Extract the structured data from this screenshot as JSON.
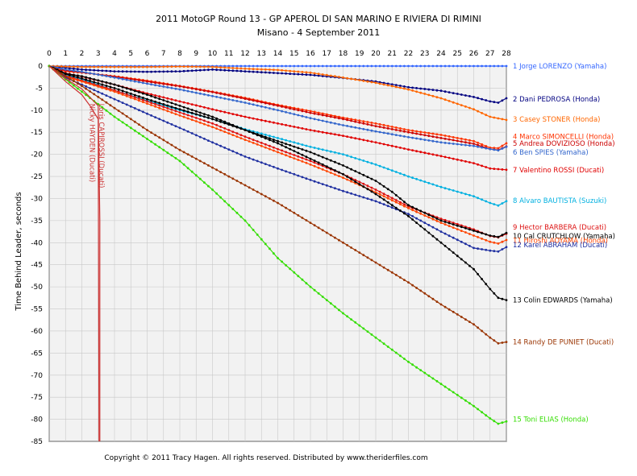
{
  "header": {
    "title": "2011 MotoGP Round 13 - GP APEROL DI SAN MARINO E RIVIERA DI RIMINI",
    "subtitle": "Misano - 4 September 2011"
  },
  "footer": {
    "copyright": "Copyright © 2011 Tracy Hagen.  All rights reserved.  Distributed by www.theriderfiles.com"
  },
  "chart_data": {
    "type": "line",
    "title": "2011 MotoGP Round 13 - GP APEROL DI SAN MARINO E RIVIERA DI RIMINI",
    "subtitle": "Misano - 4 September 2011",
    "xlabel": "",
    "ylabel": "Time Behind Leader, seconds",
    "xlim": [
      0,
      28
    ],
    "ylim": [
      -85,
      0
    ],
    "x_ticks": [
      0,
      1,
      2,
      3,
      4,
      5,
      6,
      7,
      8,
      9,
      10,
      11,
      12,
      13,
      14,
      15,
      16,
      17,
      18,
      19,
      20,
      21,
      22,
      23,
      24,
      25,
      26,
      27,
      28
    ],
    "y_ticks": [
      0,
      -5,
      -10,
      -15,
      -20,
      -25,
      -30,
      -35,
      -40,
      -45,
      -50,
      -55,
      -60,
      -65,
      -70,
      -75,
      -80,
      -85
    ],
    "grid": true,
    "legend": "right-end labels",
    "series": [
      {
        "name": "1 Jorge LORENZO (Yamaha)",
        "color": "#3366ff",
        "label_y": 0,
        "points": [
          [
            0,
            0
          ],
          [
            28,
            0
          ]
        ]
      },
      {
        "name": "2 Dani PEDROSA (Honda)",
        "color": "#000080",
        "label_y": -7.5,
        "points": [
          [
            0,
            0
          ],
          [
            2,
            -0.8
          ],
          [
            4,
            -1.2
          ],
          [
            6,
            -1.3
          ],
          [
            8,
            -1.2
          ],
          [
            10,
            -0.8
          ],
          [
            12,
            -1.2
          ],
          [
            14,
            -1.6
          ],
          [
            16,
            -2
          ],
          [
            18,
            -2.7
          ],
          [
            20,
            -3.5
          ],
          [
            22,
            -4.8
          ],
          [
            24,
            -5.6
          ],
          [
            26,
            -7
          ],
          [
            27,
            -8
          ],
          [
            27.5,
            -8.3
          ],
          [
            28,
            -7.3
          ]
        ]
      },
      {
        "name": "3 Casey STONER (Honda)",
        "color": "#ff6600",
        "label_y": -12,
        "points": [
          [
            0,
            0
          ],
          [
            2,
            -0.2
          ],
          [
            4,
            -0.2
          ],
          [
            6,
            -0.2
          ],
          [
            8,
            -0.1
          ],
          [
            10,
            -0.2
          ],
          [
            12,
            -0.6
          ],
          [
            14,
            -0.9
          ],
          [
            16,
            -1.5
          ],
          [
            18,
            -2.6
          ],
          [
            20,
            -3.8
          ],
          [
            22,
            -5.3
          ],
          [
            24,
            -7.3
          ],
          [
            26,
            -9.8
          ],
          [
            27,
            -11.5
          ],
          [
            28,
            -12.2
          ]
        ]
      },
      {
        "name": "4 Marco SIMONCELLI (Honda)",
        "color": "#ff3300",
        "label_y": -16,
        "points": [
          [
            0,
            0
          ],
          [
            1,
            -1.2
          ],
          [
            2,
            -1.5
          ],
          [
            4,
            -2.3
          ],
          [
            6,
            -3.3
          ],
          [
            8,
            -4.5
          ],
          [
            10,
            -5.8
          ],
          [
            12,
            -7.2
          ],
          [
            14,
            -8.8
          ],
          [
            16,
            -10.2
          ],
          [
            18,
            -11.7
          ],
          [
            20,
            -13
          ],
          [
            22,
            -14.5
          ],
          [
            24,
            -15.6
          ],
          [
            26,
            -17
          ],
          [
            27,
            -18.5
          ],
          [
            27.5,
            -18.6
          ],
          [
            28,
            -17.5
          ]
        ]
      },
      {
        "name": "5 Andrea DOVIZIOSO (Honda)",
        "color": "#cc0000",
        "label_y": -17.5,
        "points": [
          [
            0,
            0
          ],
          [
            1,
            -1
          ],
          [
            2,
            -1.4
          ],
          [
            4,
            -2.4
          ],
          [
            6,
            -3.5
          ],
          [
            8,
            -4.6
          ],
          [
            10,
            -5.9
          ],
          [
            12,
            -7.4
          ],
          [
            14,
            -9
          ],
          [
            16,
            -10.6
          ],
          [
            18,
            -12
          ],
          [
            20,
            -13.6
          ],
          [
            22,
            -15
          ],
          [
            24,
            -16.3
          ],
          [
            26,
            -17.6
          ],
          [
            27,
            -18.8
          ],
          [
            27.5,
            -19
          ],
          [
            28,
            -18.2
          ]
        ]
      },
      {
        "name": "6 Ben SPIES (Yamaha)",
        "color": "#3366cc",
        "label_y": -19.5,
        "points": [
          [
            0,
            0
          ],
          [
            1,
            -0.8
          ],
          [
            2,
            -1.3
          ],
          [
            4,
            -2.6
          ],
          [
            6,
            -4
          ],
          [
            8,
            -5.3
          ],
          [
            10,
            -6.8
          ],
          [
            12,
            -8.3
          ],
          [
            14,
            -10
          ],
          [
            16,
            -11.8
          ],
          [
            18,
            -13.4
          ],
          [
            20,
            -14.8
          ],
          [
            22,
            -16.1
          ],
          [
            24,
            -17.3
          ],
          [
            26,
            -18.1
          ],
          [
            27,
            -18.8
          ],
          [
            27.5,
            -19.1
          ],
          [
            28,
            -18.3
          ]
        ]
      },
      {
        "name": "7 Valentino ROSSI (Ducati)",
        "color": "#e00000",
        "label_y": -23.5,
        "points": [
          [
            0,
            0
          ],
          [
            1,
            -1.6
          ],
          [
            2,
            -2.4
          ],
          [
            4,
            -4.2
          ],
          [
            6,
            -6.2
          ],
          [
            8,
            -8
          ],
          [
            10,
            -9.8
          ],
          [
            12,
            -11.5
          ],
          [
            14,
            -13
          ],
          [
            16,
            -14.5
          ],
          [
            18,
            -15.8
          ],
          [
            20,
            -17.3
          ],
          [
            22,
            -18.9
          ],
          [
            24,
            -20.4
          ],
          [
            26,
            -22
          ],
          [
            27,
            -23.2
          ],
          [
            28,
            -23.5
          ]
        ]
      },
      {
        "name": "8 Alvaro BAUTISTA (Suzuki)",
        "color": "#00b0e0",
        "label_y": -30.5,
        "points": [
          [
            0,
            0
          ],
          [
            1,
            -2
          ],
          [
            2,
            -3
          ],
          [
            4,
            -5.5
          ],
          [
            6,
            -7.8
          ],
          [
            8,
            -10
          ],
          [
            10,
            -12
          ],
          [
            12,
            -14.3
          ],
          [
            14,
            -16.3
          ],
          [
            16,
            -18.3
          ],
          [
            18,
            -20
          ],
          [
            20,
            -22.3
          ],
          [
            22,
            -25
          ],
          [
            24,
            -27.4
          ],
          [
            26,
            -29.5
          ],
          [
            27,
            -31
          ],
          [
            27.5,
            -31.6
          ],
          [
            28,
            -30.6
          ]
        ]
      },
      {
        "name": "9 Hector BARBERA (Ducati)",
        "color": "#dd1111",
        "label_y": -36.5,
        "points": [
          [
            0,
            0
          ],
          [
            1,
            -2.2
          ],
          [
            2,
            -3.3
          ],
          [
            4,
            -5.5
          ],
          [
            6,
            -8
          ],
          [
            8,
            -10.5
          ],
          [
            10,
            -13
          ],
          [
            12,
            -16
          ],
          [
            14,
            -18.8
          ],
          [
            16,
            -21.5
          ],
          [
            18,
            -24.5
          ],
          [
            20,
            -28
          ],
          [
            22,
            -31.8
          ],
          [
            24,
            -34.6
          ],
          [
            26,
            -37
          ],
          [
            27,
            -38.5
          ],
          [
            27.5,
            -38.8
          ],
          [
            28,
            -38
          ]
        ]
      },
      {
        "name": "10 Cal CRUTCHLOW (Yamaha)",
        "color": "#000000",
        "label_y": -38.5,
        "points": [
          [
            0,
            0
          ],
          [
            1,
            -1.8
          ],
          [
            2,
            -2.8
          ],
          [
            4,
            -5
          ],
          [
            6,
            -7.5
          ],
          [
            8,
            -9.8
          ],
          [
            10,
            -12
          ],
          [
            12,
            -14.5
          ],
          [
            14,
            -17
          ],
          [
            16,
            -19.5
          ],
          [
            18,
            -22.5
          ],
          [
            20,
            -26
          ],
          [
            21,
            -28.5
          ],
          [
            22,
            -31.5
          ],
          [
            24,
            -35
          ],
          [
            26,
            -37.3
          ],
          [
            27,
            -38.4
          ],
          [
            27.5,
            -38.7
          ],
          [
            28,
            -37.8
          ]
        ]
      },
      {
        "name": "11 Hiroshi AOYAMA (Honda)",
        "color": "#ff4400",
        "label_y": -39.5,
        "points": [
          [
            0,
            0
          ],
          [
            1,
            -2.4
          ],
          [
            2,
            -3.5
          ],
          [
            4,
            -5.8
          ],
          [
            6,
            -8.5
          ],
          [
            8,
            -11.2
          ],
          [
            10,
            -13.8
          ],
          [
            12,
            -16.7
          ],
          [
            14,
            -19.5
          ],
          [
            16,
            -22.3
          ],
          [
            18,
            -25.3
          ],
          [
            20,
            -28.6
          ],
          [
            22,
            -32.2
          ],
          [
            24,
            -35.5
          ],
          [
            26,
            -38.4
          ],
          [
            27,
            -39.8
          ],
          [
            27.5,
            -40.2
          ],
          [
            28,
            -39.4
          ]
        ]
      },
      {
        "name": "12 Karel ABRAHAM (Ducati)",
        "color": "#1f2fa0",
        "label_y": -40.5,
        "points": [
          [
            0,
            0
          ],
          [
            1,
            -2.6
          ],
          [
            2,
            -4.2
          ],
          [
            4,
            -7.5
          ],
          [
            6,
            -10.8
          ],
          [
            8,
            -14
          ],
          [
            10,
            -17.3
          ],
          [
            12,
            -20.5
          ],
          [
            14,
            -23.2
          ],
          [
            16,
            -25.8
          ],
          [
            18,
            -28.3
          ],
          [
            20,
            -30.6
          ],
          [
            22,
            -33.5
          ],
          [
            24,
            -37.5
          ],
          [
            26,
            -41.2
          ],
          [
            27,
            -41.8
          ],
          [
            27.5,
            -42
          ],
          [
            28,
            -41
          ]
        ]
      },
      {
        "name": "13 Colin EDWARDS (Yamaha)",
        "color": "#000000",
        "label_y": -53,
        "points": [
          [
            0,
            0
          ],
          [
            1,
            -1.7
          ],
          [
            2,
            -2.3
          ],
          [
            4,
            -4.2
          ],
          [
            6,
            -6.5
          ],
          [
            8,
            -9
          ],
          [
            10,
            -11.5
          ],
          [
            12,
            -14.5
          ],
          [
            14,
            -17.5
          ],
          [
            16,
            -21
          ],
          [
            18,
            -24.5
          ],
          [
            20,
            -29
          ],
          [
            22,
            -34
          ],
          [
            24,
            -40
          ],
          [
            26,
            -46
          ],
          [
            27,
            -50.5
          ],
          [
            27.5,
            -52.5
          ],
          [
            28,
            -53
          ]
        ]
      },
      {
        "name": "14 Randy DE PUNIET (Ducati)",
        "color": "#993300",
        "label_y": -62.5,
        "points": [
          [
            0,
            0
          ],
          [
            1,
            -2.3
          ],
          [
            2,
            -4.5
          ],
          [
            4,
            -9.5
          ],
          [
            6,
            -14.5
          ],
          [
            8,
            -19
          ],
          [
            10,
            -23
          ],
          [
            12,
            -27
          ],
          [
            14,
            -31
          ],
          [
            16,
            -35.5
          ],
          [
            18,
            -40
          ],
          [
            20,
            -44.5
          ],
          [
            22,
            -49
          ],
          [
            24,
            -54
          ],
          [
            26,
            -58.5
          ],
          [
            27,
            -61.5
          ],
          [
            27.5,
            -62.8
          ],
          [
            28,
            -62.5
          ]
        ]
      },
      {
        "name": "15 Toni ELIAS (Honda)",
        "color": "#33dd00",
        "label_y": -80,
        "points": [
          [
            0,
            0
          ],
          [
            1,
            -3
          ],
          [
            2,
            -5.8
          ],
          [
            4,
            -11.5
          ],
          [
            6,
            -16.5
          ],
          [
            8,
            -21.5
          ],
          [
            10,
            -28
          ],
          [
            12,
            -35
          ],
          [
            14,
            -43.5
          ],
          [
            16,
            -50
          ],
          [
            18,
            -56
          ],
          [
            20,
            -61.5
          ],
          [
            22,
            -67
          ],
          [
            24,
            -72
          ],
          [
            26,
            -77
          ],
          [
            27,
            -79.8
          ],
          [
            27.5,
            -81
          ],
          [
            28,
            -80.5
          ]
        ]
      },
      {
        "name": "Loris CAPIROSSI (Ducati)",
        "color": "#cc3333",
        "label_y": null,
        "points": [
          [
            0,
            0
          ],
          [
            1,
            -2.8
          ],
          [
            2,
            -5.2
          ],
          [
            3,
            -9
          ],
          [
            3.1,
            -35
          ],
          [
            3.1,
            -85
          ]
        ]
      },
      {
        "name": "Nicky HAYDEN (Ducati)",
        "color": "#cc3333",
        "label_y": null,
        "points": [
          [
            0,
            0
          ],
          [
            1,
            -3.5
          ],
          [
            2,
            -6.5
          ],
          [
            2.5,
            -9
          ],
          [
            3,
            -12
          ],
          [
            3.05,
            -85
          ]
        ]
      }
    ],
    "annotations": [
      {
        "text": "Nicky HAYDEN (Ducati)",
        "x": 2.5,
        "y": -8.5,
        "rotation": 90
      },
      {
        "text": "Loris CAPIROSSI (Ducati)",
        "x": 3.05,
        "y": -8.5,
        "rotation": 90
      }
    ]
  }
}
